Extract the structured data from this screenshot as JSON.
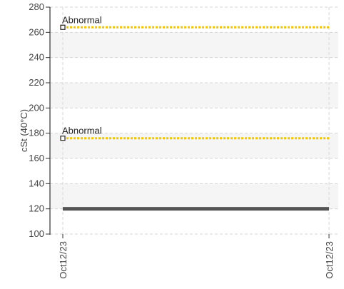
{
  "chart_data": {
    "type": "line",
    "ylabel": "cSt (40°C)",
    "ylim": [
      100,
      280
    ],
    "yticks": [
      100,
      120,
      140,
      160,
      180,
      200,
      220,
      240,
      260,
      280
    ],
    "x_tick_labels": [
      "Oct12/23",
      "Oct12/23"
    ],
    "grid": true,
    "series": [
      {
        "values": [
          120,
          120
        ],
        "color": "#555555"
      }
    ],
    "thresholds": [
      {
        "label": "Abnormal",
        "value": 264,
        "color": "#f2c600"
      },
      {
        "label": "Abnormal",
        "value": 176,
        "color": "#f2c600"
      }
    ]
  }
}
